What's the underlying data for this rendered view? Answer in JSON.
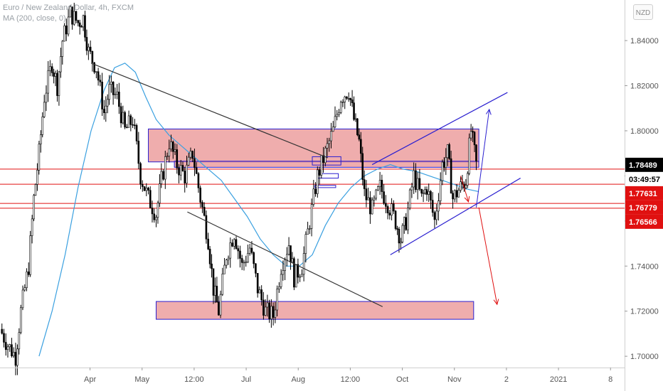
{
  "legend": {
    "title": "Euro / New Zealand Dollar, 4h, FXCM",
    "ma": "MA (200, close, 0)"
  },
  "currency_badge": "NZD",
  "colors": {
    "candle": "#000000",
    "ma": "#3aa0e0",
    "zone_fill": "#e88a8a",
    "zone_stroke": "#2a1fd0",
    "channel": "#2a1fd0",
    "trendline": "#333333",
    "hline": "#e01010",
    "arrow_blue": "#2a1fd0",
    "arrow_red": "#e01010"
  },
  "chart_data": {
    "type": "candlestick",
    "symbol": "EURNZD",
    "timeframe": "4h",
    "ylim": [
      1.695,
      1.858
    ],
    "y_ticks": [
      "1.84000",
      "1.82000",
      "1.80000",
      "1.78000",
      "1.76000",
      "1.74000",
      "1.72000",
      "1.70000"
    ],
    "y_tick_values": [
      1.84,
      1.82,
      1.8,
      1.78,
      1.76,
      1.74,
      1.72,
      1.7
    ],
    "x_ticks": [
      "Apr",
      "May",
      "12:00",
      "Jul",
      "Aug",
      "12:00",
      "Oct",
      "Nov",
      "2",
      "2021",
      "8"
    ],
    "x_tick_values": [
      1.73,
      2.73,
      3.73,
      4.73,
      5.73,
      6.73,
      7.73,
      8.73,
      9.73,
      10.73,
      11.73
    ],
    "price_series": [
      [
        0.0,
        1.712
      ],
      [
        0.15,
        1.705
      ],
      [
        0.3,
        1.7
      ],
      [
        0.4,
        1.72
      ],
      [
        0.55,
        1.74
      ],
      [
        0.65,
        1.77
      ],
      [
        0.75,
        1.79
      ],
      [
        0.85,
        1.815
      ],
      [
        1.0,
        1.83
      ],
      [
        1.1,
        1.82
      ],
      [
        1.2,
        1.84
      ],
      [
        1.35,
        1.852
      ],
      [
        1.5,
        1.848
      ],
      [
        1.6,
        1.85
      ],
      [
        1.7,
        1.835
      ],
      [
        1.85,
        1.828
      ],
      [
        2.0,
        1.808
      ],
      [
        2.1,
        1.818
      ],
      [
        2.25,
        1.815
      ],
      [
        2.4,
        1.8
      ],
      [
        2.55,
        1.805
      ],
      [
        2.7,
        1.78
      ],
      [
        2.85,
        1.77
      ],
      [
        3.0,
        1.763
      ],
      [
        3.1,
        1.778
      ],
      [
        3.25,
        1.795
      ],
      [
        3.4,
        1.785
      ],
      [
        3.55,
        1.78
      ],
      [
        3.7,
        1.79
      ],
      [
        3.85,
        1.77
      ],
      [
        4.0,
        1.752
      ],
      [
        4.1,
        1.73
      ],
      [
        4.2,
        1.72
      ],
      [
        4.35,
        1.745
      ],
      [
        4.5,
        1.755
      ],
      [
        4.65,
        1.74
      ],
      [
        4.8,
        1.748
      ],
      [
        4.95,
        1.73
      ],
      [
        5.1,
        1.72
      ],
      [
        5.25,
        1.718
      ],
      [
        5.4,
        1.74
      ],
      [
        5.55,
        1.75
      ],
      [
        5.65,
        1.735
      ],
      [
        5.8,
        1.74
      ],
      [
        5.95,
        1.76
      ],
      [
        6.1,
        1.78
      ],
      [
        6.25,
        1.79
      ],
      [
        6.4,
        1.8
      ],
      [
        6.55,
        1.815
      ],
      [
        6.7,
        1.818
      ],
      [
        6.8,
        1.805
      ],
      [
        6.9,
        1.795
      ],
      [
        7.0,
        1.772
      ],
      [
        7.15,
        1.765
      ],
      [
        7.3,
        1.775
      ],
      [
        7.45,
        1.768
      ],
      [
        7.6,
        1.76
      ],
      [
        7.7,
        1.752
      ],
      [
        7.8,
        1.76
      ],
      [
        7.95,
        1.78
      ],
      [
        8.1,
        1.77
      ],
      [
        8.2,
        1.775
      ],
      [
        8.35,
        1.76
      ],
      [
        8.5,
        1.785
      ],
      [
        8.6,
        1.79
      ],
      [
        8.7,
        1.77
      ],
      [
        8.85,
        1.775
      ],
      [
        8.95,
        1.778
      ],
      [
        9.05,
        1.8
      ],
      [
        9.15,
        1.785
      ]
    ],
    "moving_average_200": [
      [
        0.75,
        1.7
      ],
      [
        1.0,
        1.72
      ],
      [
        1.25,
        1.745
      ],
      [
        1.5,
        1.775
      ],
      [
        1.75,
        1.8
      ],
      [
        2.0,
        1.818
      ],
      [
        2.2,
        1.828
      ],
      [
        2.4,
        1.83
      ],
      [
        2.6,
        1.826
      ],
      [
        2.8,
        1.815
      ],
      [
        3.0,
        1.805
      ],
      [
        3.25,
        1.798
      ],
      [
        3.5,
        1.793
      ],
      [
        3.75,
        1.788
      ],
      [
        4.0,
        1.783
      ],
      [
        4.25,
        1.778
      ],
      [
        4.5,
        1.77
      ],
      [
        4.75,
        1.762
      ],
      [
        5.0,
        1.752
      ],
      [
        5.25,
        1.745
      ],
      [
        5.5,
        1.74
      ],
      [
        5.75,
        1.74
      ],
      [
        6.0,
        1.745
      ],
      [
        6.25,
        1.758
      ],
      [
        6.5,
        1.768
      ],
      [
        6.75,
        1.775
      ],
      [
        7.0,
        1.78
      ],
      [
        7.25,
        1.783
      ],
      [
        7.5,
        1.785
      ],
      [
        7.75,
        1.783
      ],
      [
        8.0,
        1.782
      ],
      [
        8.25,
        1.78
      ],
      [
        8.5,
        1.778
      ],
      [
        8.75,
        1.776
      ],
      [
        9.0,
        1.774
      ],
      [
        9.2,
        1.773
      ]
    ],
    "price_labels": [
      {
        "text": "1.78489",
        "value": 1.78489,
        "style": "last"
      },
      {
        "text": "03:49:57",
        "value": 1.78489,
        "style": "countdown"
      },
      {
        "text": "1.77631",
        "value": 1.77631,
        "style": "red"
      },
      {
        "text": "1.76779",
        "value": 1.76779,
        "style": "red"
      },
      {
        "text": "1.76566",
        "value": 1.76566,
        "style": "red"
      }
    ],
    "horizontal_lines": [
      1.77631,
      1.76779,
      1.76566,
      1.783
    ],
    "zones": [
      {
        "x0": 2.85,
        "x1": 9.2,
        "y0": 1.8008,
        "y1": 1.7862,
        "kind": "resistance"
      },
      {
        "x0": 3.35,
        "x1": 9.2,
        "y0": 1.7865,
        "y1": 1.7838,
        "kind": "resistance-lower"
      },
      {
        "x0": 3.0,
        "x1": 9.1,
        "y0": 1.7243,
        "y1": 1.7164,
        "kind": "support"
      },
      {
        "x0": 6.0,
        "x1": 6.55,
        "y0": 1.7885,
        "y1": 1.7848,
        "kind": "small-box"
      },
      {
        "x0": 6.05,
        "x1": 6.45,
        "y0": 1.7758,
        "y1": 1.7748,
        "kind": "small-bar"
      },
      {
        "x0": 6.1,
        "x1": 6.5,
        "y0": 1.781,
        "y1": 1.779,
        "kind": "small-box-2"
      }
    ],
    "trendlines": [
      {
        "x0": 1.75,
        "y0": 1.83,
        "x1": 6.3,
        "y1": 1.788,
        "kind": "descending"
      },
      {
        "x0": 3.6,
        "y0": 1.764,
        "x1": 7.35,
        "y1": 1.722,
        "kind": "descending-lower"
      }
    ],
    "channel": [
      {
        "x0": 7.5,
        "y0": 1.745,
        "x1": 10.0,
        "y1": 1.779
      },
      {
        "x0": 7.15,
        "y0": 1.785,
        "x1": 9.75,
        "y1": 1.817
      }
    ],
    "arrows": [
      {
        "x0": 9.15,
        "y0": 1.766,
        "x1": 9.4,
        "y1": 1.8095,
        "color": "blue"
      },
      {
        "x0": 8.85,
        "y0": 1.78,
        "x1": 9.0,
        "y1": 1.7685,
        "color": "red"
      },
      {
        "x0": 9.2,
        "y0": 1.766,
        "x1": 9.55,
        "y1": 1.723,
        "color": "red"
      }
    ]
  }
}
